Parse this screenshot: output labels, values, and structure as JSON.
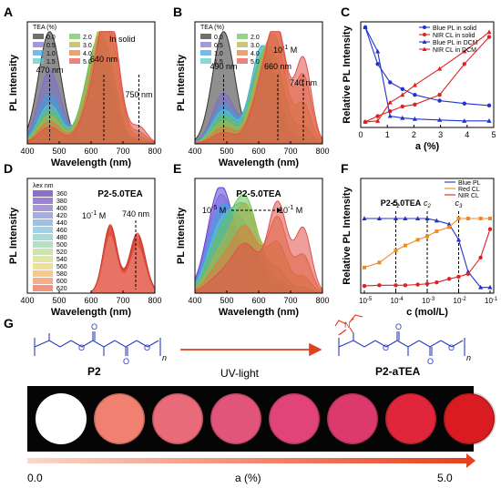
{
  "panel_letters": [
    "A",
    "B",
    "C",
    "D",
    "E",
    "F",
    "G"
  ],
  "chart_data": [
    {
      "panel": "A",
      "type": "area",
      "ylabel": "PL Intensity",
      "xlabel": "Wavelength (nm)",
      "xlim": [
        400,
        800
      ],
      "xticks": [
        400,
        500,
        600,
        700,
        800
      ],
      "note": "In solid",
      "legend_title": "TEA (%)",
      "legend_position": "top-left",
      "annotations": [
        "470 nm",
        "640 nm",
        "750 nm"
      ],
      "annotation_x": [
        470,
        640,
        750
      ],
      "series": [
        {
          "name": "0.0",
          "color": "#333333",
          "amp": [
            1.0,
            0,
            0,
            0
          ]
        },
        {
          "name": "0.5",
          "color": "#7b6fd0",
          "amp": [
            0.65,
            0.55,
            0.06,
            0
          ]
        },
        {
          "name": "1.0",
          "color": "#3aa0e0",
          "amp": [
            0.45,
            0.75,
            0.1,
            0
          ]
        },
        {
          "name": "1.5",
          "color": "#55c7c0",
          "amp": [
            0.35,
            0.85,
            0.15,
            0.02
          ]
        },
        {
          "name": "2.0",
          "color": "#66c255",
          "amp": [
            0.3,
            0.85,
            0.25,
            0.03
          ]
        },
        {
          "name": "3.0",
          "color": "#b3b13f",
          "amp": [
            0.25,
            0.75,
            0.6,
            0.06
          ]
        },
        {
          "name": "4.0",
          "color": "#e07a3a",
          "amp": [
            0.2,
            0.6,
            0.8,
            0.1
          ]
        },
        {
          "name": "5.0",
          "color": "#e0504a",
          "amp": [
            0.15,
            0.5,
            0.9,
            0.15
          ]
        }
      ]
    },
    {
      "panel": "B",
      "type": "area",
      "ylabel": "PL Intensity",
      "xlabel": "Wavelength (nm)",
      "xlim": [
        400,
        800
      ],
      "xticks": [
        400,
        500,
        600,
        700,
        800
      ],
      "note": "10",
      "note_sup": "-1",
      "note_unit": " M",
      "legend_title": "TEA (%)",
      "legend_position": "top-left",
      "annotations": [
        "490 nm",
        "660 nm",
        "740 nm"
      ],
      "annotation_x": [
        490,
        660,
        740
      ],
      "series": [
        {
          "name": "0.0",
          "color": "#333333",
          "amp": [
            1.0,
            0,
            0,
            0
          ]
        },
        {
          "name": "0.5",
          "color": "#7b6fd0",
          "amp": [
            0.45,
            0.75,
            0.05,
            0
          ]
        },
        {
          "name": "1.0",
          "color": "#3aa0e0",
          "amp": [
            0.35,
            0.85,
            0.1,
            0.02
          ]
        },
        {
          "name": "1.5",
          "color": "#55c7c0",
          "amp": [
            0.3,
            0.82,
            0.2,
            0.05
          ]
        },
        {
          "name": "2.0",
          "color": "#66c255",
          "amp": [
            0.25,
            0.7,
            0.45,
            0.15
          ]
        },
        {
          "name": "3.0",
          "color": "#b3b13f",
          "amp": [
            0.2,
            0.6,
            0.7,
            0.35
          ]
        },
        {
          "name": "4.0",
          "color": "#e07a3a",
          "amp": [
            0.15,
            0.5,
            0.85,
            0.6
          ]
        },
        {
          "name": "5.0",
          "color": "#e0504a",
          "amp": [
            0.1,
            0.45,
            0.9,
            0.75
          ]
        }
      ]
    },
    {
      "panel": "C",
      "type": "line",
      "ylabel": "Relative PL Intensity",
      "xlabel": "a (%)",
      "xlim": [
        0,
        5
      ],
      "xticks": [
        0,
        1,
        2,
        3,
        4,
        5
      ],
      "ylim": [
        0,
        1
      ],
      "legend_position": "top-right",
      "x": [
        0,
        0.5,
        1,
        1.5,
        2,
        3,
        4,
        5
      ],
      "series": [
        {
          "name": "Blue PL in solid",
          "color": "#2233cc",
          "marker": "circle",
          "values": [
            1.0,
            0.62,
            0.43,
            0.36,
            0.3,
            0.24,
            0.21,
            0.19
          ]
        },
        {
          "name": "NIR CL in solid",
          "color": "#e02020",
          "marker": "circle",
          "values": [
            0.02,
            0.08,
            0.13,
            0.18,
            0.2,
            0.3,
            0.62,
            0.9
          ]
        },
        {
          "name": "Blue PL in DCM",
          "color": "#2233cc",
          "marker": "triangle",
          "values": [
            1.0,
            0.75,
            0.08,
            0.06,
            0.05,
            0.04,
            0.03,
            0.03
          ]
        },
        {
          "name": "NIR CL in DCM",
          "color": "#e02020",
          "marker": "triangle",
          "values": [
            0.02,
            0.03,
            0.22,
            0.3,
            0.4,
            0.57,
            0.75,
            0.95
          ]
        }
      ]
    },
    {
      "panel": "D",
      "type": "area",
      "ylabel": "PL Intensity",
      "xlabel": "Wavelength (nm)",
      "xlim": [
        400,
        800
      ],
      "xticks": [
        400,
        500,
        600,
        700,
        800
      ],
      "title": "P2-5.0TEA",
      "note": "10",
      "note_sup": "-1",
      "note_unit": " M",
      "annotations": [
        "740 nm"
      ],
      "annotation_x": [
        740
      ],
      "legend_title": "λex nm",
      "legend_position": "top-left",
      "series": [
        {
          "name": "360",
          "color": "#8e6fc8"
        },
        {
          "name": "380",
          "color": "#9c82d3"
        },
        {
          "name": "400",
          "color": "#a997dc"
        },
        {
          "name": "420",
          "color": "#a5acde"
        },
        {
          "name": "440",
          "color": "#9fc0e6"
        },
        {
          "name": "460",
          "color": "#9fd2e8"
        },
        {
          "name": "480",
          "color": "#a5dcd6"
        },
        {
          "name": "500",
          "color": "#b3e2c2"
        },
        {
          "name": "520",
          "color": "#c9e6ac"
        },
        {
          "name": "540",
          "color": "#dfe7a0"
        },
        {
          "name": "560",
          "color": "#f0df95"
        },
        {
          "name": "580",
          "color": "#f7c98c"
        },
        {
          "name": "600",
          "color": "#f5ae85"
        },
        {
          "name": "620",
          "color": "#f29580"
        }
      ]
    },
    {
      "panel": "E",
      "type": "area",
      "ylabel": "PL Intensity",
      "xlabel": "Wavelength (nm)",
      "xlim": [
        400,
        800
      ],
      "xticks": [
        400,
        500,
        600,
        700,
        800
      ],
      "title": "P2-5.0TEA",
      "range_from": "10",
      "range_from_sup": "-5",
      "range_to": "10",
      "range_to_sup": "-1",
      "range_unit": " M",
      "series": [
        {
          "color": "#5b3fd6",
          "amp": [
            1.0,
            0.15,
            0,
            0
          ]
        },
        {
          "color": "#7a6be0",
          "amp": [
            0.9,
            0.25,
            0.02,
            0
          ]
        },
        {
          "color": "#3aa0e0",
          "amp": [
            0.75,
            0.55,
            0.05,
            0
          ]
        },
        {
          "color": "#55c7c0",
          "amp": [
            0.6,
            0.75,
            0.1,
            0.02
          ]
        },
        {
          "color": "#66c255",
          "amp": [
            0.5,
            0.85,
            0.2,
            0.05
          ]
        },
        {
          "color": "#b3b13f",
          "amp": [
            0.35,
            0.8,
            0.45,
            0.15
          ]
        },
        {
          "color": "#e07a3a",
          "amp": [
            0.25,
            0.6,
            0.7,
            0.35
          ]
        },
        {
          "color": "#e0504a",
          "amp": [
            0.15,
            0.45,
            0.85,
            0.6
          ]
        }
      ]
    },
    {
      "panel": "F",
      "type": "line",
      "ylabel": "Relative PL Intensity",
      "xlabel": "c (mol/L)",
      "scale": "log",
      "xlim": [
        -5,
        -1
      ],
      "ylim": [
        0,
        1
      ],
      "xtick_labels": [
        "10",
        "10",
        "10",
        "10",
        "10"
      ],
      "xtick_sups": [
        "-5",
        "-4",
        "-3",
        "-2",
        "-1"
      ],
      "title": "P2-5.0TEA",
      "legend_position": "top-right",
      "vlines": [
        {
          "label": "c",
          "sub": "1",
          "x": 0.0001
        },
        {
          "label": "c",
          "sub": "2",
          "x": 0.001
        },
        {
          "label": "c",
          "sub": "3",
          "x": 0.01
        }
      ],
      "x": [
        1e-05,
        3e-05,
        0.0001,
        0.0002,
        0.0005,
        0.001,
        0.002,
        0.005,
        0.01,
        0.02,
        0.05,
        0.1
      ],
      "series": [
        {
          "name": "Blue PL",
          "color": "#2233cc",
          "marker": "triangle",
          "values": [
            1.0,
            1.0,
            1.0,
            1.0,
            1.0,
            1.0,
            0.97,
            0.92,
            0.7,
            0.25,
            0.03,
            0.03
          ]
        },
        {
          "name": "Red CL",
          "color": "#ee8a20",
          "marker": "square",
          "values": [
            0.31,
            0.38,
            0.55,
            0.62,
            0.7,
            0.75,
            0.82,
            0.88,
            1.0,
            1.0,
            1.0,
            1.0
          ]
        },
        {
          "name": "NIR CL",
          "color": "#e02020",
          "marker": "circle",
          "values": [
            0.05,
            0.06,
            0.06,
            0.06,
            0.07,
            0.08,
            0.1,
            0.15,
            0.18,
            0.22,
            0.45,
            0.85
          ]
        }
      ]
    }
  ],
  "panel_g": {
    "p2_label": "P2",
    "p2_sub": "n",
    "arrow_label": "UV-light",
    "p2_tea_label": "P2-aTEA",
    "p2_tea_sub": "n",
    "n_label": "N",
    "samples": [
      {
        "color": "#ffffff",
        "level": 0.0
      },
      {
        "color": "#f08070",
        "level": 0.14
      },
      {
        "color": "#e96a78",
        "level": 0.28
      },
      {
        "color": "#e2557a",
        "level": 0.42
      },
      {
        "color": "#e04478",
        "level": 0.57
      },
      {
        "color": "#dc3a6c",
        "level": 0.71
      },
      {
        "color": "#e0263a",
        "level": 0.85
      },
      {
        "color": "#d81c22",
        "level": 1.0
      }
    ],
    "axis_start": "0.0",
    "axis_label": "a (%)",
    "axis_end": "5.0"
  }
}
